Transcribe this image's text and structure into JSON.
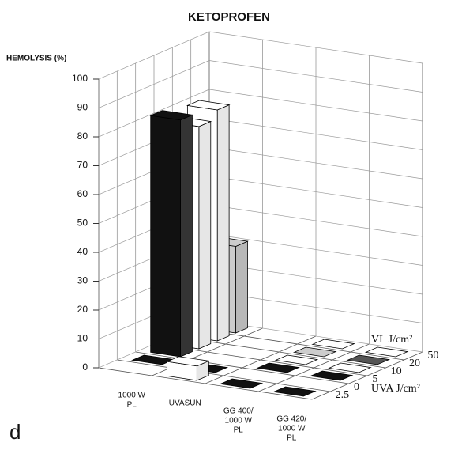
{
  "chart_data": {
    "type": "bar3d",
    "title": "KETOPROFEN",
    "ylabel": "HEMOLYSIS (%)",
    "panel_label": "d",
    "categories": [
      [
        "1000 W",
        "PL"
      ],
      [
        "UVASUN"
      ],
      [
        "GG 400/",
        "1000 W",
        "PL"
      ],
      [
        "GG 420/",
        "1000 W",
        "PL"
      ]
    ],
    "depth_categories": [
      "50",
      "20",
      "10",
      "5",
      "0",
      "2.5"
    ],
    "depth_labels": [
      "VL J/cm²",
      "UVA J/cm²"
    ],
    "values": [
      [
        30,
        null,
        0,
        0
      ],
      [
        80,
        null,
        0,
        0
      ],
      [
        77,
        null,
        0,
        0
      ],
      [
        82,
        null,
        0,
        0
      ],
      [
        0,
        0,
        null,
        null
      ],
      [
        null,
        5,
        0,
        0
      ]
    ],
    "colors": [
      [
        "#cccccc",
        null,
        "#ffffff",
        "#ffffff"
      ],
      [
        "#ffffff",
        null,
        "#cccccc",
        "#555555"
      ],
      [
        "#ffffff",
        null,
        "#ffffff",
        "#ffffff"
      ],
      [
        "#111111",
        null,
        "#111111",
        "#111111"
      ],
      [
        "#111111",
        "#111111",
        null,
        null
      ],
      [
        null,
        "#ffffff",
        "#111111",
        "#111111"
      ]
    ],
    "ylim": [
      0,
      100
    ],
    "yticks": [
      0,
      10,
      20,
      30,
      40,
      50,
      60,
      70,
      80,
      90,
      100
    ],
    "grid": true
  }
}
